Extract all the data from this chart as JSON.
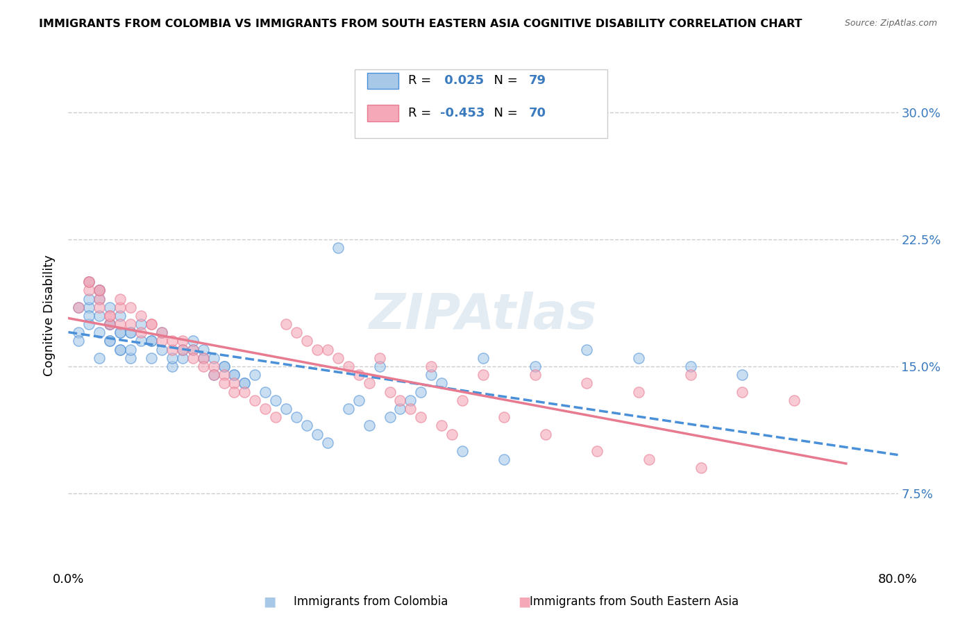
{
  "title": "IMMIGRANTS FROM COLOMBIA VS IMMIGRANTS FROM SOUTH EASTERN ASIA COGNITIVE DISABILITY CORRELATION CHART",
  "source": "Source: ZipAtlas.com",
  "ylabel": "Cognitive Disability",
  "yticks": [
    "7.5%",
    "15.0%",
    "22.5%",
    "30.0%"
  ],
  "ytick_vals": [
    0.075,
    0.15,
    0.225,
    0.3
  ],
  "xlim": [
    0.0,
    0.8
  ],
  "ylim": [
    0.03,
    0.33
  ],
  "r_colombia": 0.025,
  "n_colombia": 79,
  "r_sea": -0.453,
  "n_sea": 70,
  "color_colombia": "#a8c8e8",
  "color_sea": "#f4a8b8",
  "line_colombia": "#4a90d9",
  "line_sea": "#e87a90",
  "watermark": "ZIPAtlas",
  "legend_colombia": "Immigrants from Colombia",
  "legend_sea": "Immigrants from South Eastern Asia",
  "colombia_x": [
    0.02,
    0.03,
    0.04,
    0.01,
    0.02,
    0.03,
    0.05,
    0.04,
    0.06,
    0.03,
    0.02,
    0.01,
    0.04,
    0.05,
    0.03,
    0.06,
    0.07,
    0.08,
    0.05,
    0.04,
    0.02,
    0.03,
    0.04,
    0.01,
    0.05,
    0.06,
    0.03,
    0.02,
    0.04,
    0.05,
    0.07,
    0.08,
    0.09,
    0.06,
    0.1,
    0.11,
    0.12,
    0.08,
    0.13,
    0.09,
    0.14,
    0.15,
    0.1,
    0.11,
    0.16,
    0.12,
    0.17,
    0.18,
    0.13,
    0.19,
    0.2,
    0.14,
    0.21,
    0.15,
    0.22,
    0.16,
    0.23,
    0.17,
    0.24,
    0.25,
    0.3,
    0.35,
    0.4,
    0.45,
    0.5,
    0.55,
    0.6,
    0.65,
    0.38,
    0.42,
    0.26,
    0.27,
    0.28,
    0.29,
    0.31,
    0.32,
    0.33,
    0.34,
    0.36
  ],
  "colombia_y": [
    0.175,
    0.18,
    0.165,
    0.17,
    0.185,
    0.19,
    0.16,
    0.175,
    0.17,
    0.195,
    0.2,
    0.185,
    0.165,
    0.16,
    0.17,
    0.155,
    0.175,
    0.165,
    0.18,
    0.185,
    0.19,
    0.195,
    0.175,
    0.165,
    0.17,
    0.16,
    0.155,
    0.18,
    0.175,
    0.17,
    0.165,
    0.155,
    0.16,
    0.17,
    0.15,
    0.155,
    0.16,
    0.165,
    0.155,
    0.17,
    0.145,
    0.15,
    0.155,
    0.16,
    0.145,
    0.165,
    0.14,
    0.145,
    0.16,
    0.135,
    0.13,
    0.155,
    0.125,
    0.15,
    0.12,
    0.145,
    0.115,
    0.14,
    0.11,
    0.105,
    0.15,
    0.145,
    0.155,
    0.15,
    0.16,
    0.155,
    0.15,
    0.145,
    0.1,
    0.095,
    0.22,
    0.125,
    0.13,
    0.115,
    0.12,
    0.125,
    0.13,
    0.135,
    0.14
  ],
  "sea_x": [
    0.01,
    0.02,
    0.03,
    0.04,
    0.02,
    0.03,
    0.04,
    0.05,
    0.03,
    0.02,
    0.04,
    0.05,
    0.06,
    0.03,
    0.07,
    0.08,
    0.05,
    0.09,
    0.06,
    0.1,
    0.11,
    0.07,
    0.12,
    0.08,
    0.13,
    0.09,
    0.14,
    0.1,
    0.15,
    0.11,
    0.16,
    0.12,
    0.17,
    0.13,
    0.18,
    0.14,
    0.19,
    0.15,
    0.2,
    0.16,
    0.25,
    0.3,
    0.35,
    0.4,
    0.45,
    0.5,
    0.55,
    0.6,
    0.65,
    0.7,
    0.21,
    0.22,
    0.23,
    0.24,
    0.26,
    0.27,
    0.28,
    0.29,
    0.31,
    0.32,
    0.33,
    0.34,
    0.36,
    0.37,
    0.38,
    0.42,
    0.46,
    0.51,
    0.56,
    0.61
  ],
  "sea_y": [
    0.185,
    0.2,
    0.19,
    0.175,
    0.195,
    0.185,
    0.18,
    0.175,
    0.195,
    0.2,
    0.18,
    0.185,
    0.175,
    0.195,
    0.17,
    0.175,
    0.19,
    0.165,
    0.185,
    0.16,
    0.165,
    0.18,
    0.16,
    0.175,
    0.155,
    0.17,
    0.15,
    0.165,
    0.145,
    0.16,
    0.14,
    0.155,
    0.135,
    0.15,
    0.13,
    0.145,
    0.125,
    0.14,
    0.12,
    0.135,
    0.16,
    0.155,
    0.15,
    0.145,
    0.145,
    0.14,
    0.135,
    0.145,
    0.135,
    0.13,
    0.175,
    0.17,
    0.165,
    0.16,
    0.155,
    0.15,
    0.145,
    0.14,
    0.135,
    0.13,
    0.125,
    0.12,
    0.115,
    0.11,
    0.13,
    0.12,
    0.11,
    0.1,
    0.095,
    0.09
  ]
}
